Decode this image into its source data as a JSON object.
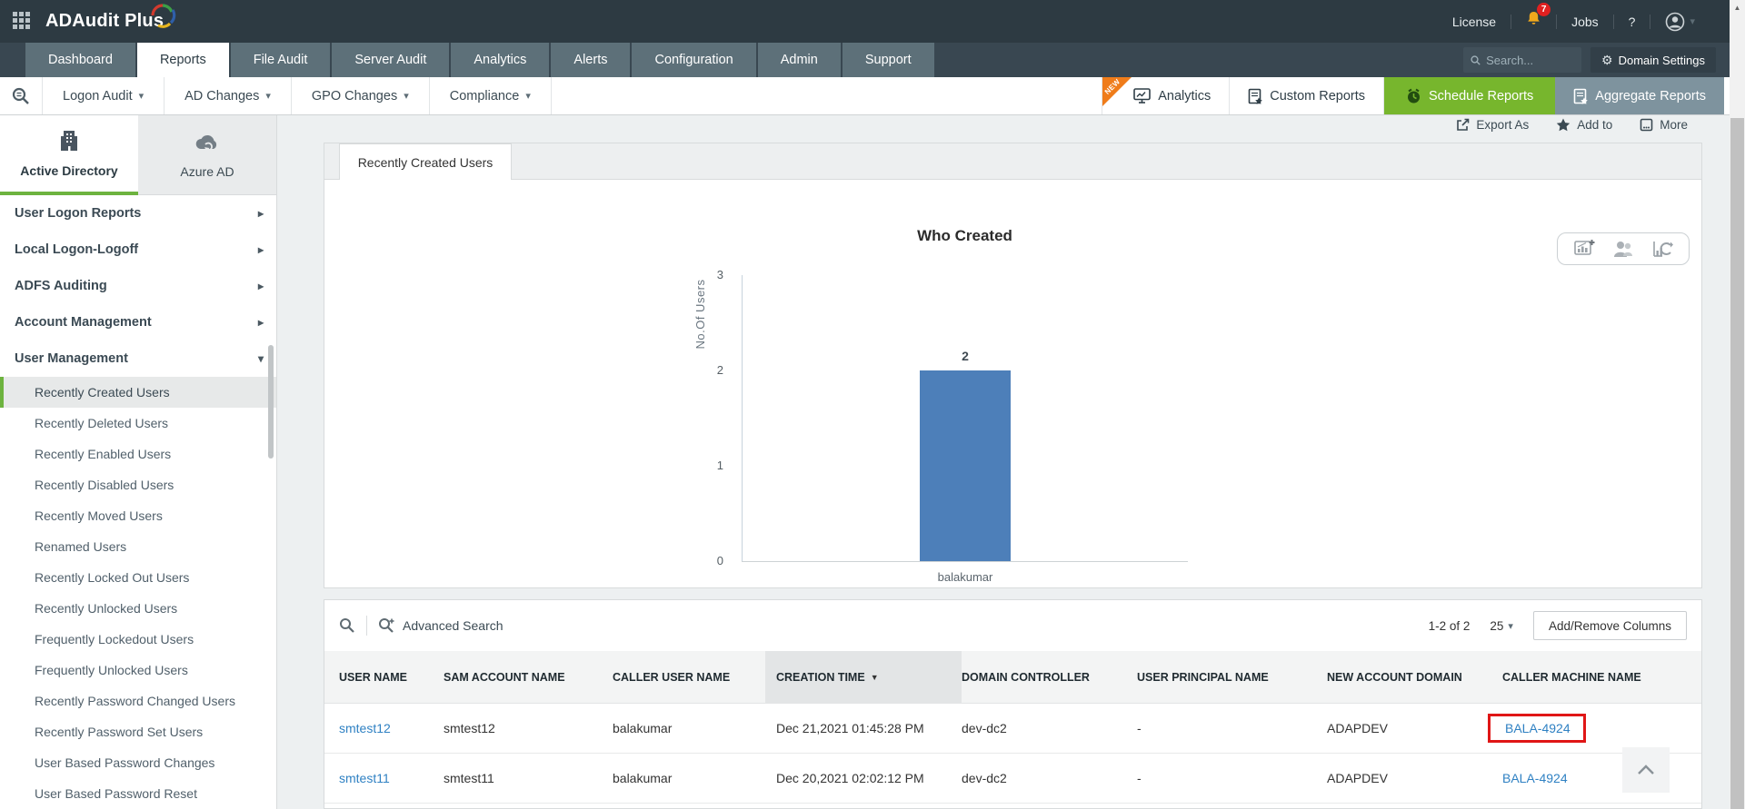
{
  "topbar": {
    "app_name": "ADAudit Plus",
    "license": "License",
    "jobs": "Jobs",
    "help": "?",
    "notification_count": "7"
  },
  "nav": {
    "tabs": [
      "Dashboard",
      "Reports",
      "File Audit",
      "Server Audit",
      "Analytics",
      "Alerts",
      "Configuration",
      "Admin",
      "Support"
    ],
    "active_tab": "Reports",
    "search_placeholder": "Search...",
    "domain_settings_label": "Domain Settings"
  },
  "subnav": {
    "menus": [
      "Logon Audit",
      "AD Changes",
      "GPO Changes",
      "Compliance"
    ],
    "new_badge": "NEW",
    "analytics_label": "Analytics",
    "custom_reports_label": "Custom Reports",
    "schedule_reports_label": "Schedule Reports",
    "aggregate_reports_label": "Aggregate Reports"
  },
  "toolbar": {
    "export_label": "Export As",
    "add_to_label": "Add to",
    "more_label": "More"
  },
  "sidebar": {
    "tabs": [
      {
        "label": "Active Directory",
        "active": true
      },
      {
        "label": "Azure AD",
        "active": false
      }
    ],
    "items": [
      {
        "label": "User Logon Reports",
        "expanded": false
      },
      {
        "label": "Local Logon-Logoff",
        "expanded": false
      },
      {
        "label": "ADFS Auditing",
        "expanded": false
      },
      {
        "label": "Account Management",
        "expanded": false
      },
      {
        "label": "User Management",
        "expanded": true
      }
    ],
    "subitems": [
      {
        "label": "Recently Created Users",
        "selected": true
      },
      {
        "label": "Recently Deleted Users",
        "selected": false
      },
      {
        "label": "Recently Enabled Users",
        "selected": false
      },
      {
        "label": "Recently Disabled Users",
        "selected": false
      },
      {
        "label": "Recently Moved Users",
        "selected": false
      },
      {
        "label": "Renamed Users",
        "selected": false
      },
      {
        "label": "Recently Locked Out Users",
        "selected": false
      },
      {
        "label": "Recently Unlocked Users",
        "selected": false
      },
      {
        "label": "Frequently Lockedout Users",
        "selected": false
      },
      {
        "label": "Frequently Unlocked Users",
        "selected": false
      },
      {
        "label": "Recently Password Changed Users",
        "selected": false
      },
      {
        "label": "Recently Password Set Users",
        "selected": false
      },
      {
        "label": "User Based Password Changes",
        "selected": false
      },
      {
        "label": "User Based Password Reset",
        "selected": false
      }
    ]
  },
  "content": {
    "report_tab": "Recently Created Users"
  },
  "chart_data": {
    "type": "bar",
    "title": "Who Created",
    "categories": [
      "balakumar"
    ],
    "values": [
      2
    ],
    "xlabel": "",
    "ylabel": "No.Of Users",
    "ylim": [
      0,
      3
    ],
    "yticks": [
      0,
      1,
      2,
      3
    ],
    "grid": false,
    "legend_position": "none",
    "bar_color": "#4d7fb9"
  },
  "table": {
    "advanced_search_label": "Advanced Search",
    "range_label": "1-2 of 2",
    "page_size": "25",
    "add_remove_columns_label": "Add/Remove Columns",
    "columns": [
      "USER NAME",
      "SAM ACCOUNT NAME",
      "CALLER USER NAME",
      "CREATION TIME",
      "DOMAIN CONTROLLER",
      "USER PRINCIPAL NAME",
      "NEW ACCOUNT DOMAIN",
      "CALLER MACHINE NAME"
    ],
    "sorted_column": "CREATION TIME",
    "rows": [
      {
        "user_name": "smtest12",
        "sam": "smtest12",
        "caller": "balakumar",
        "creation": "Dec 21,2021 01:45:28 PM",
        "dc": "dev-dc2",
        "upn": "-",
        "domain": "ADAPDEV",
        "machine": "BALA-4924",
        "highlighted": true
      },
      {
        "user_name": "smtest11",
        "sam": "smtest11",
        "caller": "balakumar",
        "creation": "Dec 20,2021 02:02:12 PM",
        "dc": "dev-dc2",
        "upn": "-",
        "domain": "ADAPDEV",
        "machine": "BALA-4924",
        "highlighted": false
      }
    ]
  },
  "colors": {
    "accent_green": "#6db33f",
    "button_green": "#77b62d",
    "link_blue": "#2f81c3",
    "bar_blue": "#4d7fb9",
    "ribbon_orange": "#ef7c1a",
    "highlight_red": "#e01616"
  }
}
